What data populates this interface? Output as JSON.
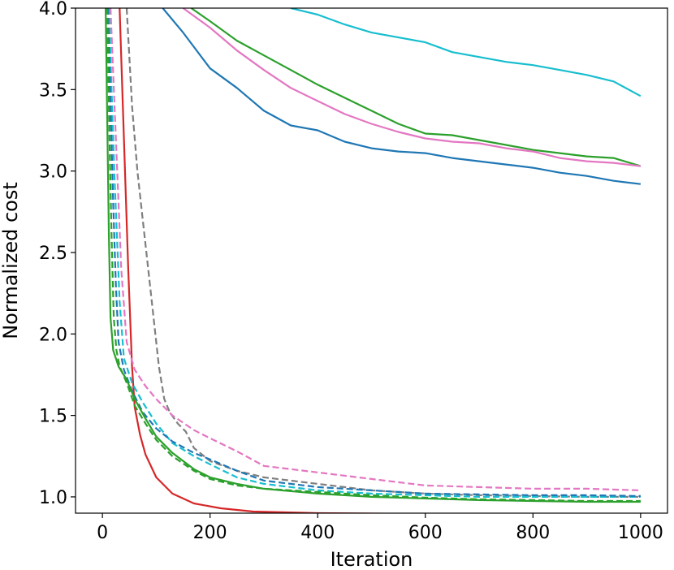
{
  "chart_data": {
    "type": "line",
    "title": "",
    "xlabel": "Iteration",
    "ylabel": "Normalized cost",
    "xlim": [
      -50,
      1050
    ],
    "ylim": [
      0.9,
      4.0
    ],
    "xticks": [
      0,
      200,
      400,
      600,
      800,
      1000
    ],
    "yticks": [
      1.0,
      1.5,
      2.0,
      2.5,
      3.0,
      3.5,
      4.0
    ],
    "xtick_labels": [
      "0",
      "200",
      "400",
      "600",
      "800",
      "1000"
    ],
    "ytick_labels": [
      "1.0",
      "1.5",
      "2.0",
      "2.5",
      "3.0",
      "3.5",
      "4.0"
    ],
    "grid": false,
    "legend": "none",
    "series": [
      {
        "color": "#17becf",
        "dashed": false,
        "x": [
          350,
          400,
          450,
          500,
          550,
          600,
          650,
          700,
          750,
          800,
          850,
          900,
          950,
          1000
        ],
        "y": [
          4.0,
          3.96,
          3.9,
          3.85,
          3.82,
          3.79,
          3.73,
          3.7,
          3.67,
          3.65,
          3.62,
          3.59,
          3.55,
          3.46
        ]
      },
      {
        "color": "#2ca02c",
        "dashed": false,
        "x": [
          165,
          200,
          250,
          300,
          350,
          400,
          450,
          500,
          550,
          600,
          650,
          700,
          750,
          800,
          850,
          900,
          950,
          1000
        ],
        "y": [
          4.0,
          3.92,
          3.8,
          3.71,
          3.62,
          3.53,
          3.45,
          3.37,
          3.29,
          3.23,
          3.22,
          3.19,
          3.16,
          3.13,
          3.11,
          3.09,
          3.08,
          3.03
        ]
      },
      {
        "color": "#e377c2",
        "dashed": false,
        "x": [
          150,
          200,
          250,
          300,
          350,
          400,
          450,
          500,
          550,
          600,
          650,
          700,
          750,
          800,
          850,
          900,
          950,
          1000
        ],
        "y": [
          4.0,
          3.88,
          3.74,
          3.62,
          3.51,
          3.43,
          3.35,
          3.29,
          3.24,
          3.2,
          3.18,
          3.17,
          3.14,
          3.12,
          3.08,
          3.06,
          3.05,
          3.03
        ]
      },
      {
        "color": "#1f77b4",
        "dashed": false,
        "x": [
          112,
          150,
          200,
          250,
          300,
          350,
          400,
          450,
          500,
          550,
          600,
          650,
          700,
          750,
          800,
          850,
          900,
          950,
          1000
        ],
        "y": [
          4.0,
          3.85,
          3.63,
          3.51,
          3.37,
          3.28,
          3.25,
          3.18,
          3.14,
          3.12,
          3.11,
          3.08,
          3.06,
          3.04,
          3.02,
          2.99,
          2.97,
          2.94,
          2.92
        ]
      },
      {
        "color": "#d62728",
        "dashed": false,
        "x": [
          32,
          40,
          48,
          55,
          60,
          70,
          80,
          100,
          130,
          170,
          220,
          280,
          400,
          600,
          800,
          1000
        ],
        "y": [
          4.0,
          3.2,
          2.4,
          1.8,
          1.55,
          1.38,
          1.26,
          1.12,
          1.02,
          0.96,
          0.93,
          0.91,
          0.9,
          0.895,
          0.893,
          0.89
        ]
      },
      {
        "color": "#7f7f7f",
        "dashed": true,
        "x": [
          45,
          55,
          65,
          75,
          85,
          95,
          105,
          115,
          125,
          140,
          155,
          170,
          200,
          250,
          300,
          400,
          500,
          600,
          700,
          800,
          900,
          1000
        ],
        "y": [
          4.0,
          3.4,
          3.0,
          2.7,
          2.4,
          2.1,
          1.8,
          1.6,
          1.52,
          1.45,
          1.4,
          1.3,
          1.22,
          1.16,
          1.12,
          1.08,
          1.04,
          1.02,
          1.01,
          1.005,
          1.0,
          1.0
        ]
      },
      {
        "color": "#e377c2",
        "dashed": true,
        "x": [
          15,
          20,
          25,
          30,
          35,
          45,
          60,
          80,
          100,
          130,
          170,
          200,
          250,
          300,
          400,
          500,
          600,
          700,
          800,
          900,
          1000
        ],
        "y": [
          4.0,
          3.6,
          3.2,
          2.8,
          2.4,
          1.95,
          1.78,
          1.68,
          1.6,
          1.5,
          1.41,
          1.36,
          1.28,
          1.19,
          1.15,
          1.11,
          1.07,
          1.06,
          1.05,
          1.05,
          1.04
        ]
      },
      {
        "color": "#17becf",
        "dashed": true,
        "x": [
          12,
          17,
          22,
          27,
          32,
          40,
          55,
          75,
          100,
          130,
          170,
          200,
          250,
          300,
          400,
          500,
          600,
          700,
          800,
          900,
          1000
        ],
        "y": [
          4.0,
          3.5,
          3.0,
          2.6,
          2.2,
          1.85,
          1.7,
          1.58,
          1.45,
          1.33,
          1.25,
          1.2,
          1.12,
          1.08,
          1.04,
          1.02,
          1.01,
          1.0,
          1.0,
          1.0,
          1.0
        ]
      },
      {
        "color": "#1f77b4",
        "dashed": true,
        "x": [
          10,
          15,
          20,
          25,
          30,
          40,
          55,
          75,
          100,
          130,
          170,
          200,
          250,
          300,
          400,
          500,
          600,
          700,
          800,
          900,
          1000
        ],
        "y": [
          4.0,
          3.4,
          2.8,
          2.3,
          1.95,
          1.78,
          1.65,
          1.52,
          1.42,
          1.34,
          1.27,
          1.23,
          1.16,
          1.1,
          1.06,
          1.04,
          1.02,
          1.015,
          1.01,
          1.01,
          1.005
        ]
      },
      {
        "color": "#2ca02c",
        "dashed": true,
        "x": [
          9,
          13,
          17,
          21,
          26,
          32,
          45,
          60,
          80,
          100,
          130,
          170,
          200,
          250,
          300,
          400,
          500,
          600,
          700,
          800,
          900,
          1000
        ],
        "y": [
          4.0,
          3.2,
          2.6,
          2.1,
          1.9,
          1.8,
          1.7,
          1.56,
          1.45,
          1.35,
          1.25,
          1.16,
          1.11,
          1.07,
          1.05,
          1.03,
          1.01,
          0.995,
          0.985,
          0.98,
          0.975,
          0.975
        ]
      },
      {
        "color": "#2ca02c",
        "dashed": false,
        "x": [
          6,
          9,
          12,
          15,
          20,
          30,
          45,
          60,
          80,
          100,
          130,
          170,
          200,
          250,
          300,
          400,
          500,
          600,
          700,
          800,
          900,
          1000
        ],
        "y": [
          4.0,
          3.3,
          2.6,
          2.1,
          1.9,
          1.8,
          1.72,
          1.6,
          1.48,
          1.37,
          1.27,
          1.17,
          1.12,
          1.08,
          1.05,
          1.02,
          1.0,
          0.99,
          0.98,
          0.975,
          0.97,
          0.97
        ]
      }
    ]
  }
}
